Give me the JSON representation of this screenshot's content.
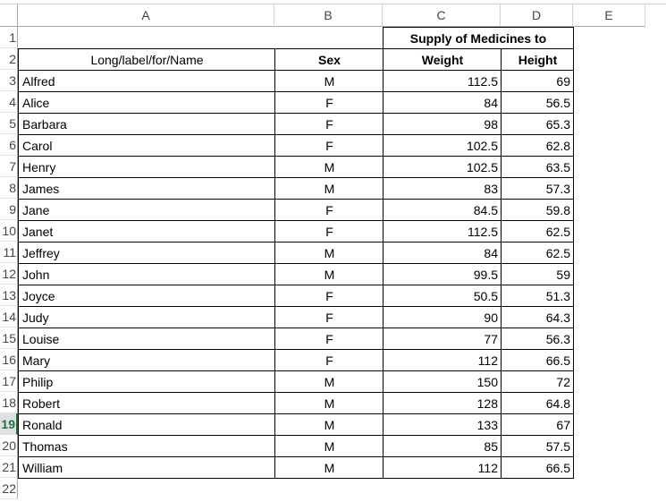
{
  "sheet": {
    "columns": [
      "A",
      "B",
      "C",
      "D",
      "E"
    ],
    "rows": [
      1,
      2,
      3,
      4,
      5,
      6,
      7,
      8,
      9,
      10,
      11,
      12,
      13,
      14,
      15,
      16,
      17,
      18,
      19,
      20,
      21,
      22
    ],
    "selected_row": 19,
    "merged_title": "Supply of Medicines to",
    "header": [
      "Long/label/for/Name",
      "Sex",
      "Weight",
      "Height"
    ],
    "records": [
      [
        "Alfred",
        "M",
        112.5,
        69
      ],
      [
        "Alice",
        "F",
        84,
        56.5
      ],
      [
        "Barbara",
        "F",
        98,
        65.3
      ],
      [
        "Carol",
        "F",
        102.5,
        62.8
      ],
      [
        "Henry",
        "M",
        102.5,
        63.5
      ],
      [
        "James",
        "M",
        83,
        57.3
      ],
      [
        "Jane",
        "F",
        84.5,
        59.8
      ],
      [
        "Janet",
        "F",
        112.5,
        62.5
      ],
      [
        "Jeffrey",
        "M",
        84,
        62.5
      ],
      [
        "John",
        "M",
        99.5,
        59
      ],
      [
        "Joyce",
        "F",
        50.5,
        51.3
      ],
      [
        "Judy",
        "F",
        90,
        64.3
      ],
      [
        "Louise",
        "F",
        77,
        56.3
      ],
      [
        "Mary",
        "F",
        112,
        66.5
      ],
      [
        "Philip",
        "M",
        150,
        72
      ],
      [
        "Robert",
        "M",
        128,
        64.8
      ],
      [
        "Ronald",
        "M",
        133,
        67
      ],
      [
        "Thomas",
        "M",
        85,
        57.5
      ],
      [
        "William",
        "M",
        112,
        66.5
      ]
    ]
  }
}
